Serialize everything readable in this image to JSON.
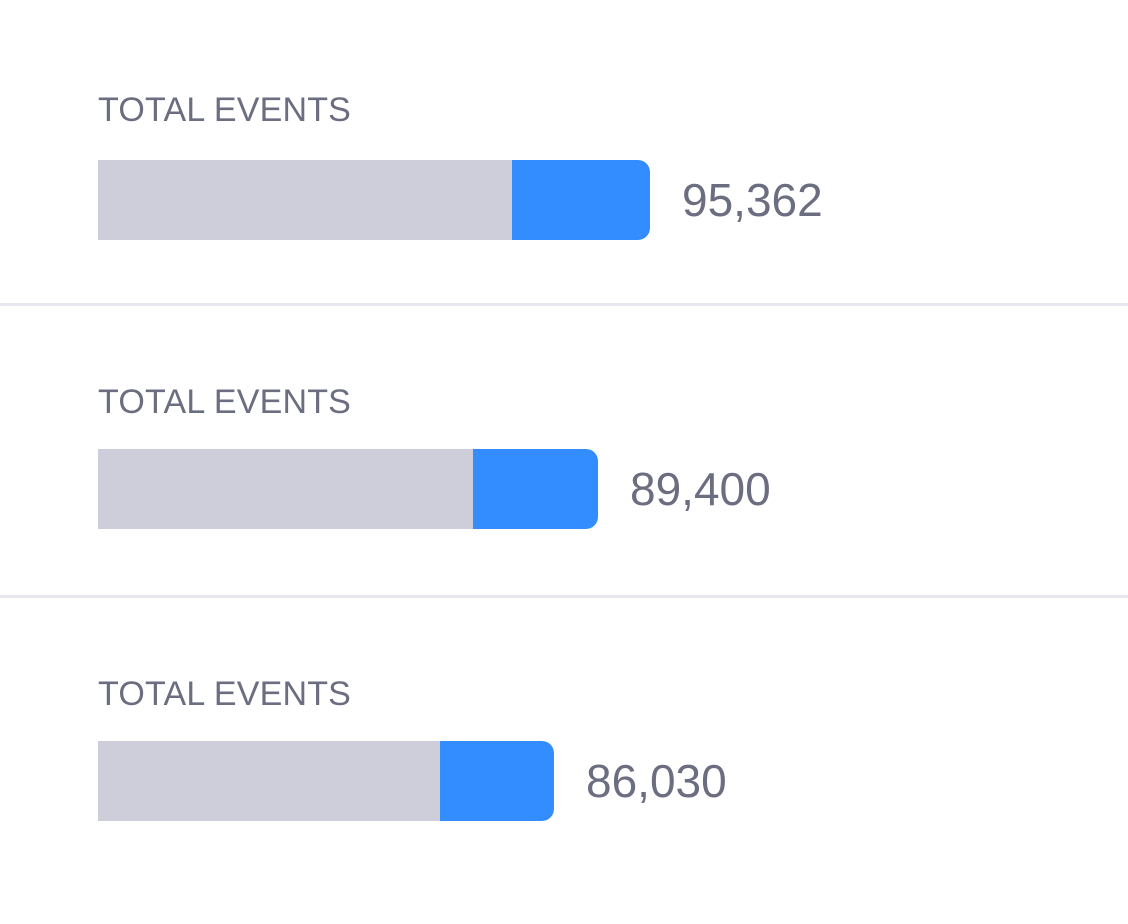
{
  "accent_color": "#338dff",
  "track_color": "#cdced9",
  "metrics": [
    {
      "label": "TOTAL EVENTS",
      "value": "95,362",
      "total_fraction": 1.0,
      "highlight_fraction": 0.25
    },
    {
      "label": "TOTAL EVENTS",
      "value": "89,400",
      "total_fraction": 0.906,
      "highlight_fraction": 0.25
    },
    {
      "label": "TOTAL EVENTS",
      "value": "86,030",
      "total_fraction": 0.826,
      "highlight_fraction": 0.25
    }
  ]
}
